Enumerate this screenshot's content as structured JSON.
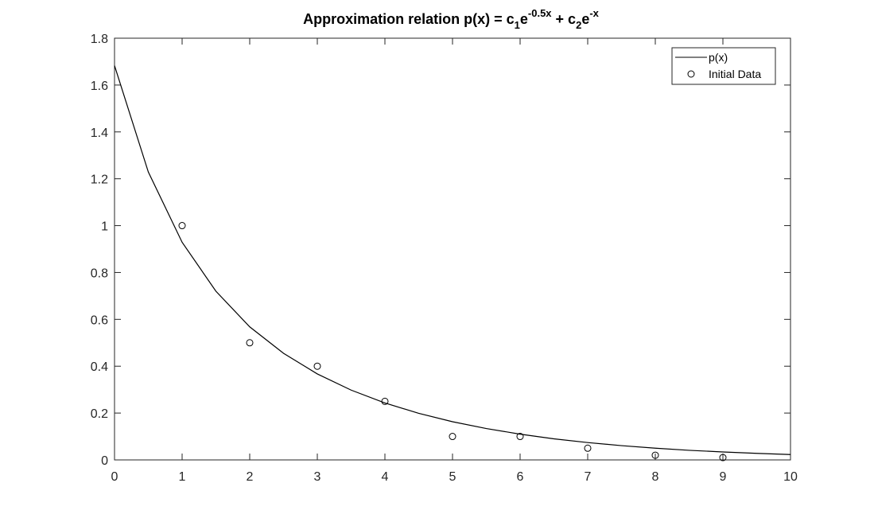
{
  "chart_data": {
    "type": "line",
    "title": {
      "prefix": "Approximation relation p(x) = c",
      "sub1": "1",
      "e1": "e",
      "sup1": "-0.5x",
      "plus": " + c",
      "sub2": "2",
      "e2": "e",
      "sup2": "-x"
    },
    "xlabel": "",
    "ylabel": "",
    "xlim": [
      0,
      10
    ],
    "ylim": [
      0,
      1.8
    ],
    "x_ticks": [
      0,
      1,
      2,
      3,
      4,
      5,
      6,
      7,
      8,
      9,
      10
    ],
    "y_ticks": [
      0,
      0.2,
      0.4,
      0.6,
      0.8,
      1,
      1.2,
      1.4,
      1.6,
      1.8
    ],
    "grid": false,
    "legend_position": "top-right",
    "series": [
      {
        "name": "p(x)",
        "style": "line",
        "color": "#000000",
        "x": [
          0,
          0.5,
          1,
          1.5,
          2,
          2.5,
          3,
          3.5,
          4,
          4.5,
          5,
          5.5,
          6,
          6.5,
          7,
          7.5,
          8,
          8.5,
          9,
          9.5,
          10
        ],
        "y": [
          1.683,
          1.229,
          0.929,
          0.72,
          0.568,
          0.455,
          0.367,
          0.298,
          0.243,
          0.199,
          0.163,
          0.134,
          0.11,
          0.09,
          0.074,
          0.061,
          0.05,
          0.041,
          0.034,
          0.028,
          0.023
        ]
      },
      {
        "name": "Initial Data",
        "style": "markers",
        "marker": "circle",
        "color": "#000000",
        "x": [
          1,
          2,
          3,
          4,
          5,
          6,
          7,
          8,
          9
        ],
        "y": [
          1.0,
          0.5,
          0.4,
          0.25,
          0.1,
          0.1,
          0.05,
          0.02,
          0.01
        ]
      }
    ]
  }
}
